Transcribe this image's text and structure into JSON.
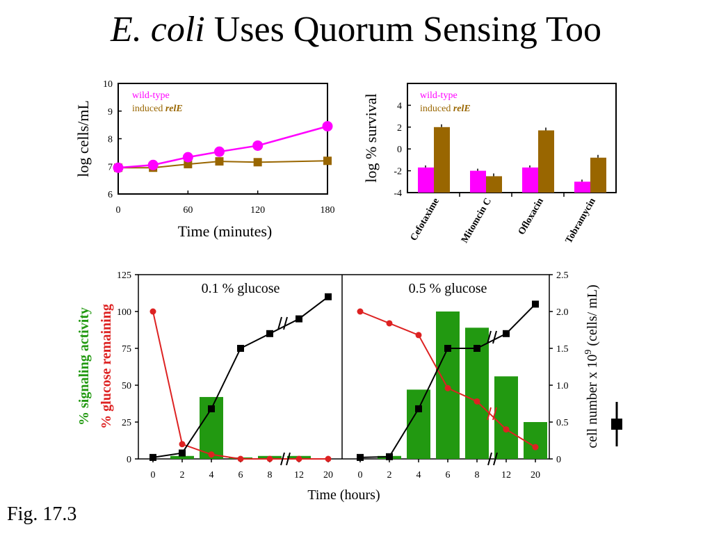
{
  "slide": {
    "title_italic": "E. coli",
    "title_rest": " Uses Quorum Sensing Too",
    "caption": "Fig. 17.3"
  },
  "colors": {
    "wild_type": "#ff00ff",
    "induced": "#996600",
    "signaling": "#229911",
    "glucose": "#dd2222",
    "cell_number": "#000000"
  },
  "chart_data": [
    {
      "type": "line",
      "xlabel": "Time (minutes)",
      "ylabel": "log cells/mL",
      "xlim": [
        0,
        180
      ],
      "ylim": [
        6,
        10
      ],
      "xticks": [
        0,
        60,
        120,
        180
      ],
      "yticks": [
        6,
        7,
        8,
        9,
        10
      ],
      "legend_position": "top-left",
      "legend": [
        {
          "text": "wild-type",
          "italic": ""
        },
        {
          "text": "induced ",
          "italic": "relE"
        }
      ],
      "series": [
        {
          "name": "wild-type",
          "x": [
            0,
            30,
            60,
            87,
            120,
            180
          ],
          "values": [
            6.95,
            7.05,
            7.33,
            7.53,
            7.75,
            8.45
          ]
        },
        {
          "name": "induced relE",
          "x": [
            0,
            30,
            60,
            87,
            120,
            180
          ],
          "values": [
            6.95,
            6.95,
            7.08,
            7.18,
            7.15,
            7.2
          ]
        }
      ]
    },
    {
      "type": "bar",
      "ylabel": "log % survival",
      "ylim": [
        -4,
        6
      ],
      "yticks": [
        -4,
        -2,
        0,
        2,
        4
      ],
      "legend_position": "top-left",
      "legend": [
        {
          "text": "wild-type",
          "italic": ""
        },
        {
          "text": "induced ",
          "italic": "relE"
        }
      ],
      "categories": [
        "Cefotaxime",
        "Mitomcin C",
        "Ofloxacin",
        "Tobramycin"
      ],
      "series": [
        {
          "name": "wild-type",
          "values": [
            -1.7,
            -2.0,
            -1.7,
            -3.0
          ]
        },
        {
          "name": "induced relE",
          "values": [
            2.0,
            -2.5,
            1.7,
            -0.8
          ]
        }
      ]
    },
    {
      "type": "bar",
      "panel": "0.1 % glucose",
      "xlabel": "Time (hours)",
      "x": [
        "0",
        "2",
        "4",
        "6",
        "8",
        "12",
        "20"
      ],
      "ylim": [
        0,
        125
      ],
      "yticks": [
        0,
        25,
        50,
        75,
        100,
        125
      ],
      "y2lim": [
        0,
        2.5
      ],
      "y2ticks": [
        "0",
        "0.5",
        "1.0",
        "1.5",
        "2.0",
        "2.5"
      ],
      "ylabel_signal": "% signaling activity",
      "ylabel_glucose": "% glucose remaining",
      "y2label": "cell number x 10",
      "y2label_exp": "9",
      "y2label_unit": " (cells/ mL)",
      "series": [
        {
          "name": "% signaling activity",
          "type": "bar",
          "values": [
            0,
            2,
            42,
            1,
            2,
            2,
            0
          ]
        },
        {
          "name": "% glucose remaining",
          "type": "line",
          "values": [
            100,
            10,
            3,
            0,
            0,
            0,
            0
          ]
        },
        {
          "name": "cell number",
          "type": "line",
          "axis": "right",
          "values": [
            0.02,
            0.08,
            0.68,
            1.5,
            1.7,
            1.9,
            2.2
          ]
        }
      ]
    },
    {
      "type": "bar",
      "panel": "0.5 % glucose",
      "x": [
        "0",
        "2",
        "4",
        "6",
        "8",
        "12",
        "20"
      ],
      "ylim": [
        0,
        125
      ],
      "y2lim": [
        0,
        2.5
      ],
      "series": [
        {
          "name": "% signaling activity",
          "type": "bar",
          "values": [
            0,
            2,
            47,
            100,
            89,
            56,
            25
          ]
        },
        {
          "name": "% glucose remaining",
          "type": "line",
          "values": [
            100,
            92,
            84,
            48,
            39,
            20,
            8
          ]
        },
        {
          "name": "cell number",
          "type": "line",
          "axis": "right",
          "values": [
            0.02,
            0.03,
            0.68,
            1.5,
            1.5,
            1.7,
            2.1
          ]
        }
      ]
    }
  ]
}
